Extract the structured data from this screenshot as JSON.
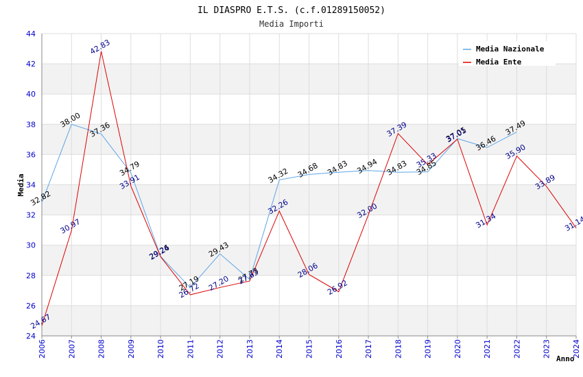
{
  "chart_data": {
    "type": "line",
    "title": "IL DIASPRO E.T.S. (c.f.01289150052)",
    "subtitle": "Media Importi",
    "ylabel": "Media",
    "xlabel": "Anno",
    "ylim": [
      24,
      44
    ],
    "yticks": [
      24,
      26,
      28,
      30,
      32,
      34,
      36,
      38,
      40,
      42,
      44
    ],
    "categories": [
      "2006",
      "2007",
      "2008",
      "2009",
      "2010",
      "2011",
      "2012",
      "2013",
      "2014",
      "2015",
      "2016",
      "2017",
      "2018",
      "2019",
      "2020",
      "2021",
      "2022",
      "2023",
      "2024"
    ],
    "series": [
      {
        "name": "Media Nazionale",
        "color": "#5da5e8",
        "values": [
          32.82,
          38.0,
          37.36,
          34.79,
          29.26,
          27.19,
          29.43,
          27.73,
          34.32,
          34.68,
          34.83,
          34.94,
          34.83,
          34.85,
          37.05,
          36.46,
          37.49,
          null,
          null
        ],
        "labels": [
          "32.82",
          "38.00",
          "37.36",
          "34.79",
          "29.26",
          "27.19",
          "29.43",
          "27.73",
          "34.32",
          "34.68",
          "34.83",
          "34.94",
          "34.83",
          "34.85",
          "37.05",
          "36.46",
          "37.49",
          null,
          null
        ]
      },
      {
        "name": "Media Ente",
        "color": "#dd0000",
        "values": [
          24.67,
          30.97,
          42.83,
          33.91,
          29.24,
          26.72,
          27.2,
          27.63,
          32.26,
          28.06,
          26.92,
          32.0,
          37.39,
          35.33,
          37.01,
          31.34,
          35.9,
          33.89,
          31.14
        ],
        "labels": [
          "24.67",
          "30.97",
          "42.83",
          "33.91",
          "29.24",
          "26.72",
          "27.20",
          "27.63",
          "32.26",
          "28.06",
          "26.92",
          "32.00",
          "37.39",
          "35.33",
          "37.01",
          "31.34",
          "35.90",
          "33.89",
          "31.14"
        ]
      }
    ],
    "legend_position": "top-right"
  }
}
